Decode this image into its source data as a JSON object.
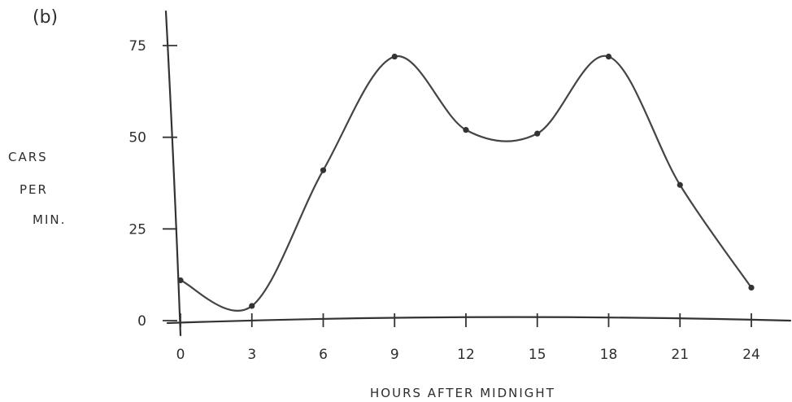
{
  "panel_label": "(b)",
  "chart_data": {
    "type": "line",
    "ylabel_lines": [
      "CARS",
      "PER",
      "MIN."
    ],
    "xlabel": "HOURS  AFTER  MIDNIGHT",
    "x_ticks": [
      0,
      3,
      6,
      9,
      12,
      15,
      18,
      21,
      24
    ],
    "y_ticks": [
      0,
      25,
      50,
      75
    ],
    "xlim": [
      0,
      24
    ],
    "ylim": [
      0,
      75
    ],
    "x": [
      0,
      3,
      6,
      9,
      12,
      15,
      18,
      21,
      24
    ],
    "y": [
      11,
      4,
      41,
      72,
      52,
      51,
      72,
      37,
      9
    ],
    "line_color": "#444444",
    "grid": false
  }
}
